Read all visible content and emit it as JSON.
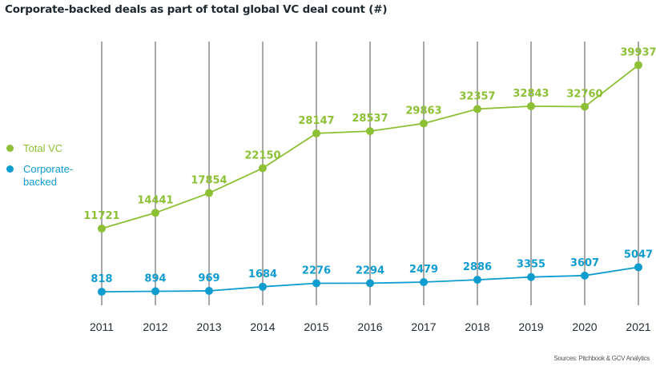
{
  "chart_data": {
    "type": "line",
    "title": "Corporate-backed deals as part of total global VC deal count (#)",
    "xlabel": "",
    "ylabel": "",
    "x": [
      "2011",
      "2012",
      "2013",
      "2014",
      "2015",
      "2016",
      "2017",
      "2018",
      "2019",
      "2020",
      "2021"
    ],
    "ylim": [
      0,
      40000
    ],
    "grid": "vertical",
    "legend_position": "left",
    "series": [
      {
        "name": "Total VC",
        "color": "#8dc035",
        "values": [
          11721,
          14441,
          17854,
          22150,
          28147,
          28537,
          29863,
          32357,
          32843,
          32760,
          39937
        ]
      },
      {
        "name": "Corporate-backed",
        "color": "#0f9cce",
        "values": [
          818,
          894,
          969,
          1684,
          2276,
          2294,
          2479,
          2886,
          3355,
          3607,
          5047
        ]
      }
    ],
    "legend": [
      {
        "label": "Total VC",
        "color": "#8dc035"
      },
      {
        "label": "Corporate-backed",
        "color": "#0f9cce"
      }
    ],
    "source": "Sources: Pitchbook & GCV Analytics"
  },
  "colors": {
    "gridline": "#7a7a7a",
    "axis_text": "#1f2a30"
  }
}
